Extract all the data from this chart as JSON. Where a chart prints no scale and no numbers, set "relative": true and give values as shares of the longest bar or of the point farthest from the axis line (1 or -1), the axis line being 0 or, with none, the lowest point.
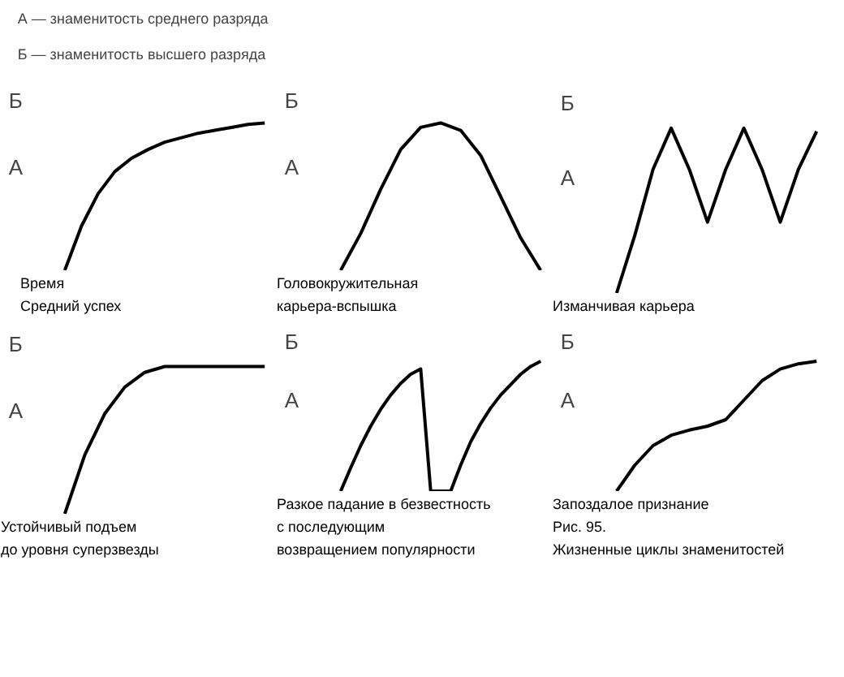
{
  "chart_data": [
    {
      "type": "line",
      "relative": true,
      "tick_labels": false,
      "color": "#000000",
      "title": "А — знаменитость среднего разряда",
      "subtitle": "Б — знаменитость высшего разряда",
      "xlabel": "Время",
      "annotations": [
        "Б",
        "А",
        "Средний успех"
      ],
      "categories": [
        null,
        null,
        null,
        null,
        null,
        null,
        null,
        null,
        null,
        null,
        null,
        null,
        null
      ],
      "values": [
        0,
        0.3,
        0.52,
        0.67,
        0.76,
        0.82,
        0.87,
        0.9,
        0.93,
        0.95,
        0.97,
        0.99,
        1
      ]
    },
    {
      "type": "line",
      "relative": true,
      "tick_labels": false,
      "color": "#000000",
      "annotations": [
        "Б",
        "А",
        "Головокружительная",
        "карьера-вспышка"
      ],
      "categories": [
        null,
        null,
        null,
        null,
        null,
        null,
        null,
        null,
        null,
        null,
        null
      ],
      "values": [
        0,
        0.25,
        0.55,
        0.82,
        0.97,
        1,
        0.95,
        0.78,
        0.5,
        0.22,
        0
      ]
    },
    {
      "type": "line",
      "relative": true,
      "tick_labels": false,
      "color": "#000000",
      "annotations": [
        "Б",
        "А",
        "Изманчивая карьера"
      ],
      "categories": [
        null,
        null,
        null,
        null,
        null,
        null,
        null,
        null,
        null,
        null,
        null,
        null
      ],
      "values": [
        0,
        0.35,
        0.75,
        1,
        0.75,
        0.43,
        0.75,
        1,
        0.75,
        0.43,
        0.75,
        0.98
      ]
    },
    {
      "type": "line",
      "relative": true,
      "tick_labels": false,
      "color": "#000000",
      "annotations": [
        "Б",
        "А",
        "Устойчивый подъем",
        "до уровня суперзвезды"
      ],
      "categories": [
        null,
        null,
        null,
        null,
        null,
        null,
        null,
        null,
        null,
        null,
        null
      ],
      "values": [
        0,
        0.4,
        0.68,
        0.86,
        0.96,
        1,
        1,
        1,
        1,
        1,
        1
      ]
    },
    {
      "type": "line",
      "relative": true,
      "tick_labels": false,
      "color": "#000000",
      "annotations": [
        "Б",
        "А",
        "Разкое падание в безвестность",
        "с последующим",
        "возвращением популярности"
      ],
      "categories": [
        null,
        null,
        null,
        null,
        null,
        null,
        null,
        null,
        null,
        null,
        null,
        null,
        null,
        null,
        null,
        null,
        null,
        null,
        null,
        null,
        null
      ],
      "values": [
        0,
        0.18,
        0.35,
        0.5,
        0.63,
        0.74,
        0.83,
        0.9,
        0.94,
        0,
        0,
        0,
        0.2,
        0.38,
        0.52,
        0.64,
        0.74,
        0.82,
        0.9,
        0.96,
        1
      ]
    },
    {
      "type": "line",
      "relative": true,
      "tick_labels": false,
      "color": "#000000",
      "annotations": [
        "Б",
        "А",
        "Запоздалое признание",
        "Рис. 95.",
        "Жизненные циклы знаменитостей"
      ],
      "categories": [
        null,
        null,
        null,
        null,
        null,
        null,
        null,
        null,
        null,
        null,
        null,
        null
      ],
      "values": [
        0,
        0.2,
        0.35,
        0.43,
        0.47,
        0.5,
        0.55,
        0.7,
        0.85,
        0.94,
        0.98,
        1
      ]
    }
  ]
}
